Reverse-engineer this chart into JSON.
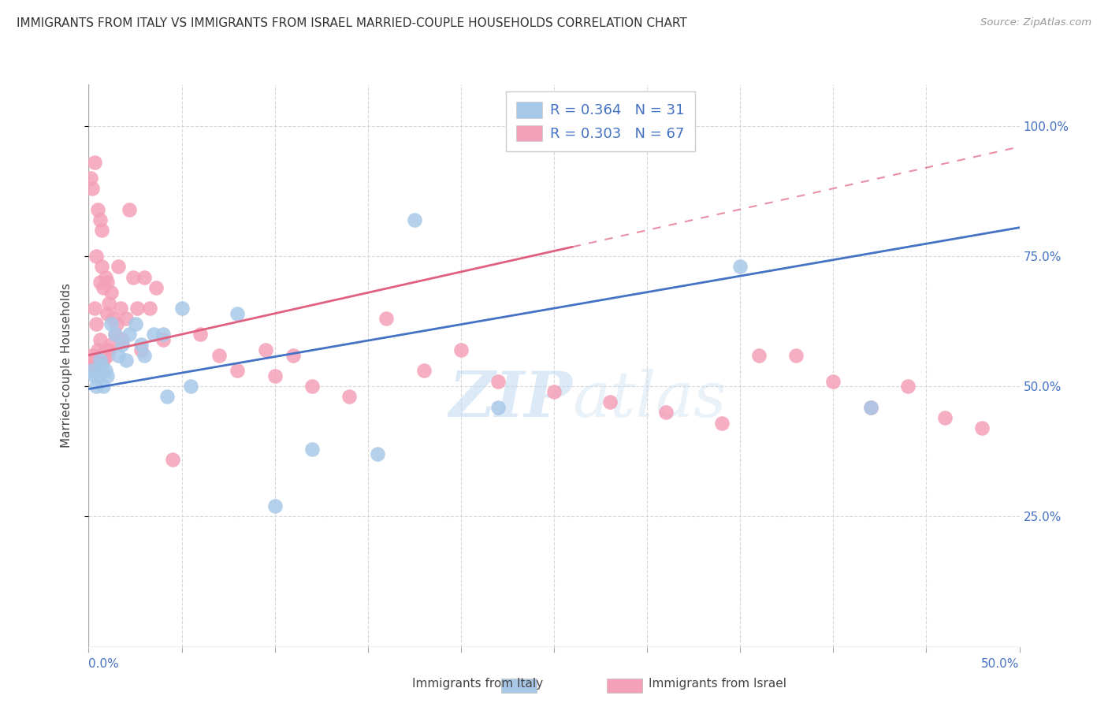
{
  "title": "IMMIGRANTS FROM ITALY VS IMMIGRANTS FROM ISRAEL MARRIED-COUPLE HOUSEHOLDS CORRELATION CHART",
  "source": "Source: ZipAtlas.com",
  "ylabel": "Married-couple Households",
  "ytick_vals": [
    1.0,
    0.75,
    0.5,
    0.25
  ],
  "ytick_labels": [
    "100.0%",
    "75.0%",
    "50.0%",
    "25.0%"
  ],
  "xlim": [
    0.0,
    0.5
  ],
  "ylim": [
    0.0,
    1.08
  ],
  "legend_italy_r": "R = 0.364",
  "legend_italy_n": "N = 31",
  "legend_israel_r": "R = 0.303",
  "legend_israel_n": "N = 67",
  "color_italy": "#a8c8e8",
  "color_israel": "#f4a0b8",
  "color_italy_line": "#4472c4",
  "color_israel_line": "#e06080",
  "legend_label_italy": "Immigrants from Italy",
  "legend_label_israel": "Immigrants from Israel",
  "italy_x": [
    0.002,
    0.003,
    0.004,
    0.005,
    0.006,
    0.007,
    0.008,
    0.009,
    0.01,
    0.012,
    0.014,
    0.016,
    0.018,
    0.02,
    0.022,
    0.025,
    0.028,
    0.03,
    0.035,
    0.04,
    0.042,
    0.05,
    0.055,
    0.08,
    0.1,
    0.12,
    0.155,
    0.175,
    0.22,
    0.35,
    0.42
  ],
  "italy_y": [
    0.53,
    0.52,
    0.5,
    0.52,
    0.55,
    0.54,
    0.5,
    0.53,
    0.52,
    0.62,
    0.6,
    0.56,
    0.58,
    0.55,
    0.6,
    0.62,
    0.58,
    0.56,
    0.6,
    0.6,
    0.48,
    0.65,
    0.5,
    0.64,
    0.27,
    0.38,
    0.37,
    0.82,
    0.46,
    0.73,
    0.46
  ],
  "israel_x": [
    0.001,
    0.001,
    0.002,
    0.002,
    0.003,
    0.003,
    0.003,
    0.004,
    0.004,
    0.005,
    0.005,
    0.006,
    0.006,
    0.006,
    0.007,
    0.007,
    0.007,
    0.008,
    0.008,
    0.009,
    0.009,
    0.01,
    0.01,
    0.01,
    0.011,
    0.011,
    0.012,
    0.012,
    0.013,
    0.014,
    0.015,
    0.016,
    0.017,
    0.018,
    0.02,
    0.022,
    0.024,
    0.026,
    0.028,
    0.03,
    0.033,
    0.036,
    0.04,
    0.045,
    0.06,
    0.07,
    0.08,
    0.095,
    0.1,
    0.11,
    0.12,
    0.14,
    0.16,
    0.18,
    0.2,
    0.22,
    0.25,
    0.28,
    0.31,
    0.34,
    0.36,
    0.38,
    0.4,
    0.42,
    0.44,
    0.46,
    0.48
  ],
  "israel_y": [
    0.55,
    0.9,
    0.56,
    0.88,
    0.54,
    0.65,
    0.93,
    0.62,
    0.75,
    0.57,
    0.84,
    0.59,
    0.7,
    0.82,
    0.56,
    0.73,
    0.8,
    0.55,
    0.69,
    0.57,
    0.71,
    0.56,
    0.64,
    0.7,
    0.57,
    0.66,
    0.58,
    0.68,
    0.63,
    0.6,
    0.62,
    0.73,
    0.65,
    0.59,
    0.63,
    0.84,
    0.71,
    0.65,
    0.57,
    0.71,
    0.65,
    0.69,
    0.59,
    0.36,
    0.6,
    0.56,
    0.53,
    0.57,
    0.52,
    0.56,
    0.5,
    0.48,
    0.63,
    0.53,
    0.57,
    0.51,
    0.49,
    0.47,
    0.45,
    0.43,
    0.56,
    0.56,
    0.51,
    0.46,
    0.5,
    0.44,
    0.42
  ],
  "watermark_zip": "ZIP",
  "watermark_atlas": "atlas",
  "background_color": "#ffffff",
  "grid_color": "#d8d8d8",
  "italy_line_intercept": 0.495,
  "italy_line_slope": 0.62,
  "israel_line_intercept": 0.56,
  "israel_line_slope": 0.8,
  "israel_line_x_end": 0.26
}
